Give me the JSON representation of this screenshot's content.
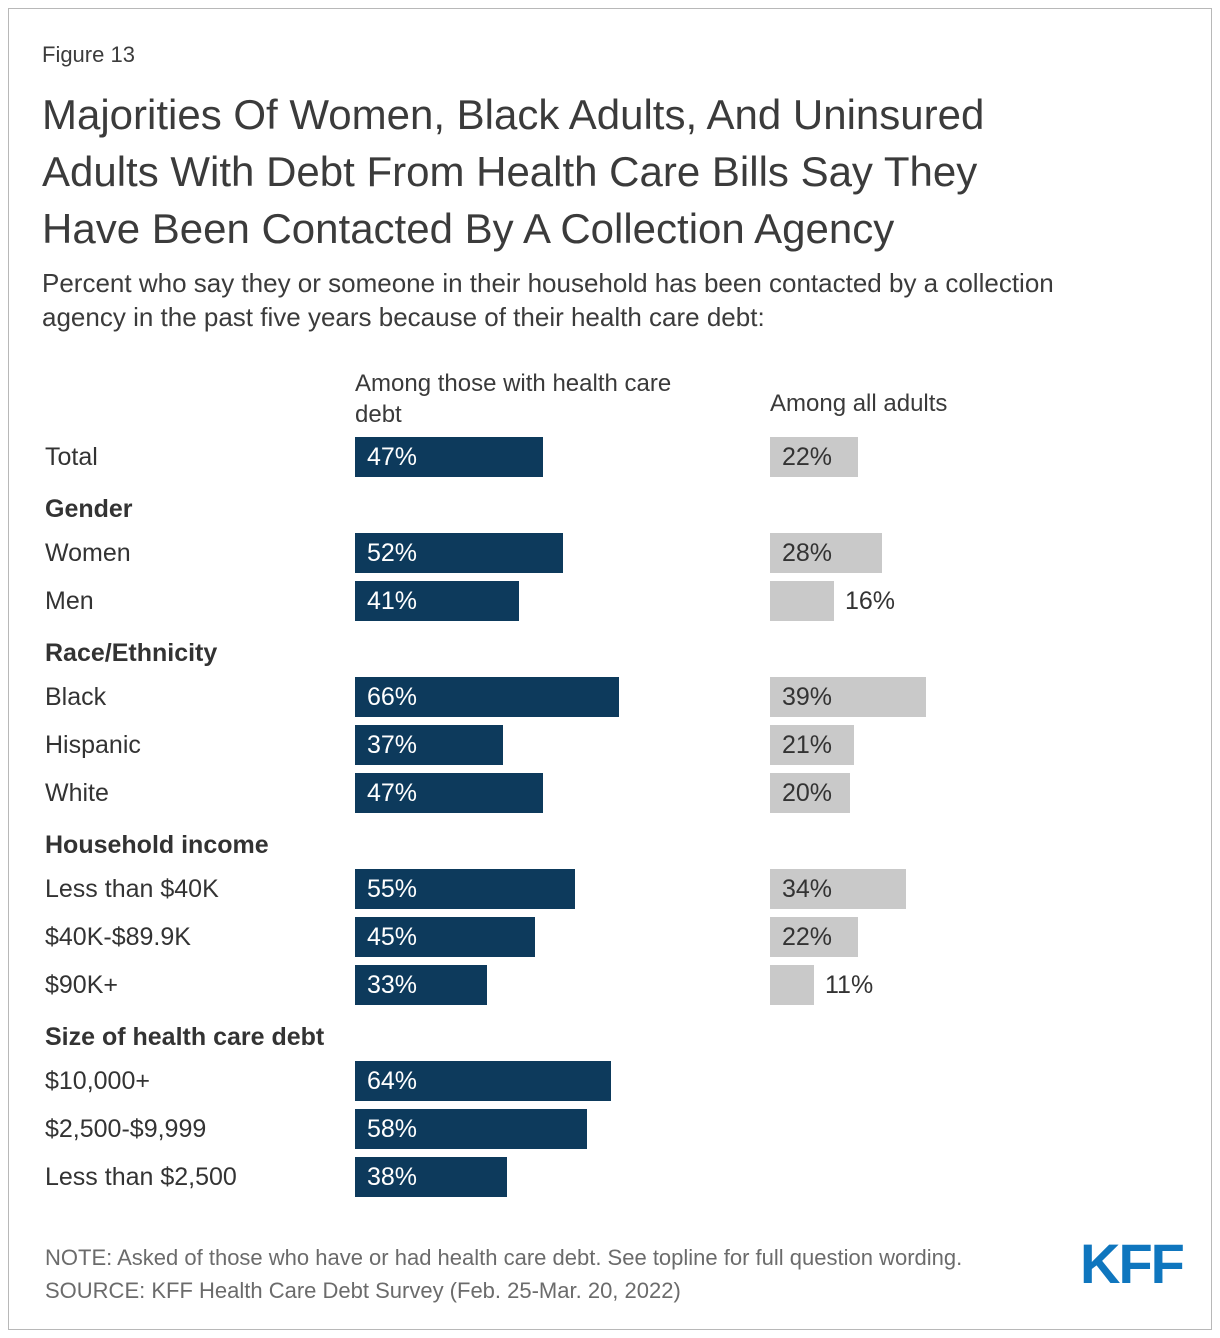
{
  "figure_label": "Figure 13",
  "title_lines": [
    "Majorities Of Women, Black Adults, And Uninsured",
    "Adults With Debt From Health Care Bills Say They",
    "Have Been Contacted By A Collection Agency"
  ],
  "subtitle_lines": [
    "Percent who say they or someone in their household has been contacted by a collection",
    "agency in the past five years because of their health care debt:"
  ],
  "note": "NOTE: Asked of those who have or had health care debt. See topline for full question wording.",
  "source": "SOURCE: KFF Health Care Debt Survey (Feb. 25-Mar. 20, 2022)",
  "logo_text": "KFF",
  "colors": {
    "debt_bar": "#0d3a5c",
    "all_adults_bar": "#c9c9c9",
    "kff_blue": "#0f76be",
    "text_dark": "#333333",
    "note_gray": "#6b6b6b"
  },
  "chart_data": {
    "type": "bar",
    "orientation": "horizontal",
    "title": "Majorities Of Women, Black Adults, And Uninsured Adults With Debt From Health Care Bills Say They Have Been Contacted By A Collection Agency",
    "subtitle": "Percent who say they or someone in their household has been contacted by a collection agency in the past five years because of their health care debt:",
    "series_names": [
      "Among those with health care debt",
      "Among all adults"
    ],
    "series_colors": [
      "#0d3a5c",
      "#c9c9c9"
    ],
    "unit": "percent",
    "value_labels_inside_bars": true,
    "items": [
      {
        "type": "bar",
        "label": "Total",
        "values": [
          47,
          22
        ],
        "value_labels": [
          "47%",
          "22%"
        ]
      },
      {
        "type": "group",
        "label": "Gender"
      },
      {
        "type": "bar",
        "label": "Women",
        "values": [
          52,
          28
        ],
        "value_labels": [
          "52%",
          "28%"
        ]
      },
      {
        "type": "bar",
        "label": "Men",
        "values": [
          41,
          16
        ],
        "value_labels": [
          "41%",
          "16%"
        ],
        "all_adults_label_outside": true
      },
      {
        "type": "group",
        "label": "Race/Ethnicity"
      },
      {
        "type": "bar",
        "label": "Black",
        "values": [
          66,
          39
        ],
        "value_labels": [
          "66%",
          "39%"
        ]
      },
      {
        "type": "bar",
        "label": "Hispanic",
        "values": [
          37,
          21
        ],
        "value_labels": [
          "37%",
          "21%"
        ]
      },
      {
        "type": "bar",
        "label": "White",
        "values": [
          47,
          20
        ],
        "value_labels": [
          "47%",
          "20%"
        ]
      },
      {
        "type": "group",
        "label": "Household income"
      },
      {
        "type": "bar",
        "label": "Less than $40K",
        "values": [
          55,
          34
        ],
        "value_labels": [
          "55%",
          "34%"
        ]
      },
      {
        "type": "bar",
        "label": "$40K-$89.9K",
        "values": [
          45,
          22
        ],
        "value_labels": [
          "45%",
          "22%"
        ]
      },
      {
        "type": "bar",
        "label": "$90K+",
        "values": [
          33,
          11
        ],
        "value_labels": [
          "33%",
          "11%"
        ],
        "all_adults_label_outside": true
      },
      {
        "type": "group",
        "label": "Size of health care debt"
      },
      {
        "type": "bar",
        "label": "$10,000+",
        "values": [
          64,
          null
        ],
        "value_labels": [
          "64%",
          null
        ]
      },
      {
        "type": "bar",
        "label": "$2,500-$9,999",
        "values": [
          58,
          null
        ],
        "value_labels": [
          "58%",
          null
        ]
      },
      {
        "type": "bar",
        "label": "Less than $2,500",
        "values": [
          38,
          null
        ],
        "value_labels": [
          "38%",
          null
        ]
      }
    ]
  }
}
